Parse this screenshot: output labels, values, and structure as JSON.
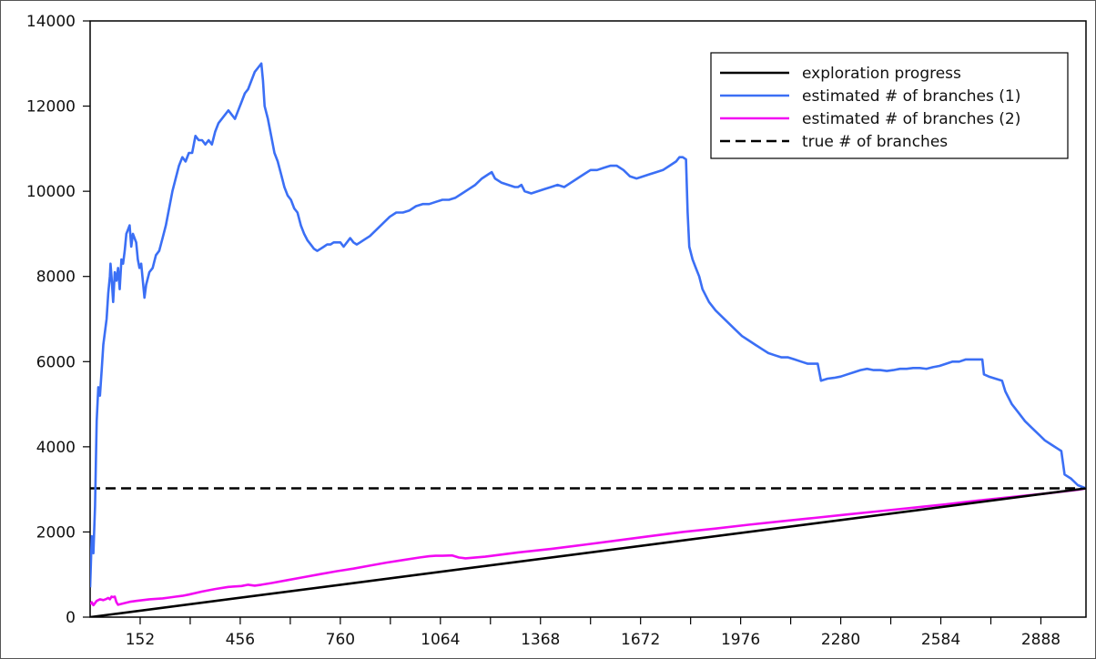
{
  "chart_data": {
    "type": "line",
    "title": "",
    "xlabel": "",
    "ylabel": "",
    "xlim": [
      0,
      3025
    ],
    "ylim": [
      0,
      14000
    ],
    "x_ticks": [
      152,
      456,
      760,
      1064,
      1368,
      1672,
      1976,
      2280,
      2584,
      2888
    ],
    "y_ticks": [
      0,
      2000,
      4000,
      6000,
      8000,
      10000,
      12000,
      14000
    ],
    "grid": false,
    "legend_position": "top-right",
    "series": [
      {
        "name": "exploration progress",
        "color": "#000000",
        "style": "solid",
        "points": [
          [
            0,
            0
          ],
          [
            3025,
            3025
          ]
        ]
      },
      {
        "name": "estimated # of branches (1)",
        "color": "#3b6ff5",
        "style": "solid",
        "points": [
          [
            0,
            700
          ],
          [
            5,
            1900
          ],
          [
            10,
            1500
          ],
          [
            15,
            2600
          ],
          [
            20,
            4600
          ],
          [
            25,
            5400
          ],
          [
            30,
            5200
          ],
          [
            35,
            5800
          ],
          [
            40,
            6400
          ],
          [
            50,
            7000
          ],
          [
            55,
            7600
          ],
          [
            60,
            8000
          ],
          [
            62,
            8300
          ],
          [
            65,
            8000
          ],
          [
            70,
            7400
          ],
          [
            75,
            8100
          ],
          [
            80,
            7900
          ],
          [
            85,
            8200
          ],
          [
            90,
            7700
          ],
          [
            95,
            8400
          ],
          [
            100,
            8300
          ],
          [
            105,
            8600
          ],
          [
            110,
            9000
          ],
          [
            115,
            9100
          ],
          [
            120,
            9200
          ],
          [
            125,
            8700
          ],
          [
            130,
            9000
          ],
          [
            140,
            8800
          ],
          [
            145,
            8400
          ],
          [
            150,
            8200
          ],
          [
            155,
            8300
          ],
          [
            160,
            7900
          ],
          [
            165,
            7500
          ],
          [
            170,
            7800
          ],
          [
            180,
            8100
          ],
          [
            190,
            8200
          ],
          [
            200,
            8500
          ],
          [
            210,
            8600
          ],
          [
            220,
            8900
          ],
          [
            230,
            9200
          ],
          [
            240,
            9600
          ],
          [
            250,
            10000
          ],
          [
            260,
            10300
          ],
          [
            270,
            10600
          ],
          [
            280,
            10800
          ],
          [
            290,
            10700
          ],
          [
            300,
            10900
          ],
          [
            310,
            10900
          ],
          [
            320,
            11300
          ],
          [
            330,
            11200
          ],
          [
            340,
            11200
          ],
          [
            350,
            11100
          ],
          [
            360,
            11200
          ],
          [
            370,
            11100
          ],
          [
            380,
            11400
          ],
          [
            390,
            11600
          ],
          [
            400,
            11700
          ],
          [
            410,
            11800
          ],
          [
            420,
            11900
          ],
          [
            430,
            11800
          ],
          [
            440,
            11700
          ],
          [
            450,
            11900
          ],
          [
            460,
            12100
          ],
          [
            470,
            12300
          ],
          [
            480,
            12400
          ],
          [
            490,
            12600
          ],
          [
            500,
            12800
          ],
          [
            510,
            12900
          ],
          [
            520,
            13000
          ],
          [
            525,
            12600
          ],
          [
            530,
            12000
          ],
          [
            540,
            11700
          ],
          [
            550,
            11300
          ],
          [
            560,
            10900
          ],
          [
            570,
            10700
          ],
          [
            580,
            10400
          ],
          [
            590,
            10100
          ],
          [
            600,
            9900
          ],
          [
            610,
            9800
          ],
          [
            620,
            9600
          ],
          [
            630,
            9500
          ],
          [
            640,
            9200
          ],
          [
            650,
            9000
          ],
          [
            660,
            8850
          ],
          [
            670,
            8750
          ],
          [
            680,
            8650
          ],
          [
            690,
            8600
          ],
          [
            700,
            8650
          ],
          [
            710,
            8700
          ],
          [
            720,
            8750
          ],
          [
            730,
            8750
          ],
          [
            740,
            8800
          ],
          [
            750,
            8800
          ],
          [
            760,
            8800
          ],
          [
            770,
            8700
          ],
          [
            780,
            8800
          ],
          [
            790,
            8900
          ],
          [
            800,
            8800
          ],
          [
            810,
            8750
          ],
          [
            820,
            8800
          ],
          [
            830,
            8850
          ],
          [
            850,
            8950
          ],
          [
            870,
            9100
          ],
          [
            890,
            9250
          ],
          [
            910,
            9400
          ],
          [
            930,
            9500
          ],
          [
            950,
            9500
          ],
          [
            970,
            9550
          ],
          [
            990,
            9650
          ],
          [
            1010,
            9700
          ],
          [
            1030,
            9700
          ],
          [
            1050,
            9750
          ],
          [
            1070,
            9800
          ],
          [
            1090,
            9800
          ],
          [
            1110,
            9850
          ],
          [
            1130,
            9950
          ],
          [
            1150,
            10050
          ],
          [
            1170,
            10150
          ],
          [
            1190,
            10300
          ],
          [
            1210,
            10400
          ],
          [
            1220,
            10450
          ],
          [
            1230,
            10300
          ],
          [
            1250,
            10200
          ],
          [
            1270,
            10150
          ],
          [
            1290,
            10100
          ],
          [
            1300,
            10100
          ],
          [
            1310,
            10150
          ],
          [
            1320,
            10000
          ],
          [
            1340,
            9950
          ],
          [
            1360,
            10000
          ],
          [
            1380,
            10050
          ],
          [
            1400,
            10100
          ],
          [
            1420,
            10150
          ],
          [
            1440,
            10100
          ],
          [
            1460,
            10200
          ],
          [
            1480,
            10300
          ],
          [
            1500,
            10400
          ],
          [
            1520,
            10500
          ],
          [
            1540,
            10500
          ],
          [
            1560,
            10550
          ],
          [
            1580,
            10600
          ],
          [
            1600,
            10600
          ],
          [
            1620,
            10500
          ],
          [
            1640,
            10350
          ],
          [
            1660,
            10300
          ],
          [
            1680,
            10350
          ],
          [
            1700,
            10400
          ],
          [
            1720,
            10450
          ],
          [
            1740,
            10500
          ],
          [
            1760,
            10600
          ],
          [
            1780,
            10700
          ],
          [
            1790,
            10800
          ],
          [
            1800,
            10800
          ],
          [
            1810,
            10750
          ],
          [
            1815,
            9500
          ],
          [
            1820,
            8700
          ],
          [
            1830,
            8400
          ],
          [
            1840,
            8200
          ],
          [
            1850,
            8000
          ],
          [
            1860,
            7700
          ],
          [
            1880,
            7400
          ],
          [
            1900,
            7200
          ],
          [
            1920,
            7050
          ],
          [
            1940,
            6900
          ],
          [
            1960,
            6750
          ],
          [
            1980,
            6600
          ],
          [
            2000,
            6500
          ],
          [
            2020,
            6400
          ],
          [
            2040,
            6300
          ],
          [
            2060,
            6200
          ],
          [
            2080,
            6150
          ],
          [
            2100,
            6100
          ],
          [
            2120,
            6100
          ],
          [
            2140,
            6050
          ],
          [
            2160,
            6000
          ],
          [
            2180,
            5950
          ],
          [
            2200,
            5950
          ],
          [
            2210,
            5950
          ],
          [
            2220,
            5550
          ],
          [
            2240,
            5600
          ],
          [
            2260,
            5620
          ],
          [
            2280,
            5650
          ],
          [
            2300,
            5700
          ],
          [
            2320,
            5750
          ],
          [
            2340,
            5800
          ],
          [
            2360,
            5830
          ],
          [
            2380,
            5800
          ],
          [
            2400,
            5800
          ],
          [
            2420,
            5780
          ],
          [
            2440,
            5800
          ],
          [
            2460,
            5830
          ],
          [
            2480,
            5830
          ],
          [
            2500,
            5850
          ],
          [
            2520,
            5850
          ],
          [
            2540,
            5830
          ],
          [
            2560,
            5870
          ],
          [
            2580,
            5900
          ],
          [
            2600,
            5950
          ],
          [
            2620,
            6000
          ],
          [
            2640,
            6000
          ],
          [
            2660,
            6050
          ],
          [
            2680,
            6050
          ],
          [
            2700,
            6050
          ],
          [
            2710,
            6050
          ],
          [
            2715,
            5700
          ],
          [
            2730,
            5650
          ],
          [
            2750,
            5600
          ],
          [
            2770,
            5550
          ],
          [
            2780,
            5300
          ],
          [
            2800,
            5000
          ],
          [
            2820,
            4800
          ],
          [
            2840,
            4600
          ],
          [
            2860,
            4450
          ],
          [
            2880,
            4300
          ],
          [
            2900,
            4150
          ],
          [
            2920,
            4050
          ],
          [
            2940,
            3950
          ],
          [
            2950,
            3900
          ],
          [
            2960,
            3350
          ],
          [
            2980,
            3250
          ],
          [
            3000,
            3100
          ],
          [
            3025,
            3025
          ]
        ]
      },
      {
        "name": "estimated # of branches (2)",
        "color": "#f20af2",
        "style": "solid",
        "points": [
          [
            0,
            300
          ],
          [
            5,
            350
          ],
          [
            10,
            280
          ],
          [
            20,
            380
          ],
          [
            30,
            420
          ],
          [
            40,
            400
          ],
          [
            50,
            430
          ],
          [
            55,
            450
          ],
          [
            60,
            420
          ],
          [
            65,
            480
          ],
          [
            70,
            470
          ],
          [
            75,
            480
          ],
          [
            80,
            350
          ],
          [
            85,
            290
          ],
          [
            100,
            320
          ],
          [
            120,
            360
          ],
          [
            140,
            380
          ],
          [
            160,
            400
          ],
          [
            180,
            420
          ],
          [
            200,
            430
          ],
          [
            220,
            440
          ],
          [
            240,
            460
          ],
          [
            260,
            480
          ],
          [
            280,
            500
          ],
          [
            300,
            530
          ],
          [
            340,
            600
          ],
          [
            380,
            660
          ],
          [
            420,
            710
          ],
          [
            460,
            730
          ],
          [
            480,
            760
          ],
          [
            490,
            750
          ],
          [
            500,
            740
          ],
          [
            520,
            760
          ],
          [
            550,
            800
          ],
          [
            600,
            870
          ],
          [
            650,
            940
          ],
          [
            700,
            1010
          ],
          [
            750,
            1080
          ],
          [
            800,
            1140
          ],
          [
            850,
            1210
          ],
          [
            900,
            1280
          ],
          [
            950,
            1340
          ],
          [
            1000,
            1400
          ],
          [
            1030,
            1430
          ],
          [
            1050,
            1440
          ],
          [
            1070,
            1440
          ],
          [
            1100,
            1450
          ],
          [
            1120,
            1400
          ],
          [
            1140,
            1380
          ],
          [
            1200,
            1420
          ],
          [
            1300,
            1520
          ],
          [
            1400,
            1600
          ],
          [
            1500,
            1700
          ],
          [
            1600,
            1800
          ],
          [
            1700,
            1900
          ],
          [
            1800,
            2000
          ],
          [
            1900,
            2080
          ],
          [
            2000,
            2170
          ],
          [
            2100,
            2250
          ],
          [
            2200,
            2330
          ],
          [
            2300,
            2410
          ],
          [
            2400,
            2490
          ],
          [
            2500,
            2570
          ],
          [
            2600,
            2650
          ],
          [
            2700,
            2740
          ],
          [
            2800,
            2820
          ],
          [
            2900,
            2900
          ],
          [
            3000,
            2990
          ],
          [
            3025,
            3025
          ]
        ]
      },
      {
        "name": "true # of branches",
        "color": "#000000",
        "style": "dashed",
        "points": [
          [
            0,
            3025
          ],
          [
            3025,
            3025
          ]
        ]
      }
    ]
  }
}
